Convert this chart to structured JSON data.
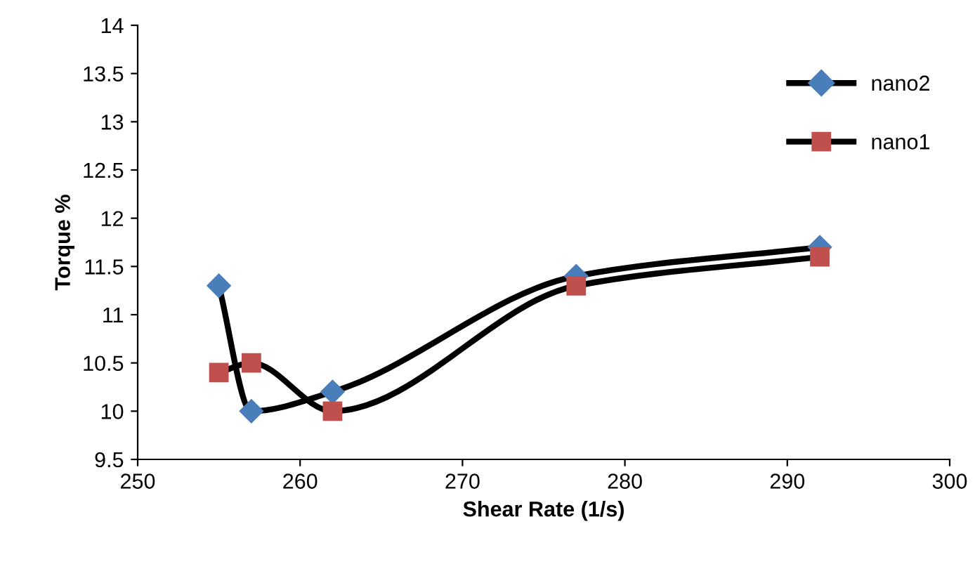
{
  "chart_data": {
    "type": "line",
    "xlabel": "Shear Rate (1/s)",
    "ylabel": "Torque %",
    "series": [
      {
        "name": "nano2",
        "color": "#000000",
        "colors": [
          "#4a7ebb",
          "#4a7ebb",
          "#4a7ebb",
          "#4a7ebb",
          "#4a7ebb"
        ],
        "marker": "diamond",
        "x": [
          255,
          257,
          262,
          277,
          292
        ],
        "values": [
          11.3,
          10.0,
          10.2,
          11.4,
          11.7
        ]
      },
      {
        "name": "nano1",
        "color": "#000000",
        "colors": [
          "#c0504d",
          "#c0504d",
          "#c0504d",
          "#c0504d",
          "#c0504d"
        ],
        "marker": "square",
        "x": [
          255,
          257,
          262,
          277,
          292
        ],
        "values": [
          10.4,
          10.5,
          10.0,
          11.3,
          11.6
        ]
      }
    ],
    "xlim": [
      250,
      300
    ],
    "xticks": [
      250,
      260,
      270,
      280,
      290,
      300
    ],
    "ylim": [
      9.5,
      14
    ],
    "yticks": [
      9.5,
      10,
      10.5,
      11,
      11.5,
      12,
      12.5,
      13,
      13.5,
      14
    ],
    "grid": false,
    "legend": "top right",
    "line_style": "solid"
  }
}
